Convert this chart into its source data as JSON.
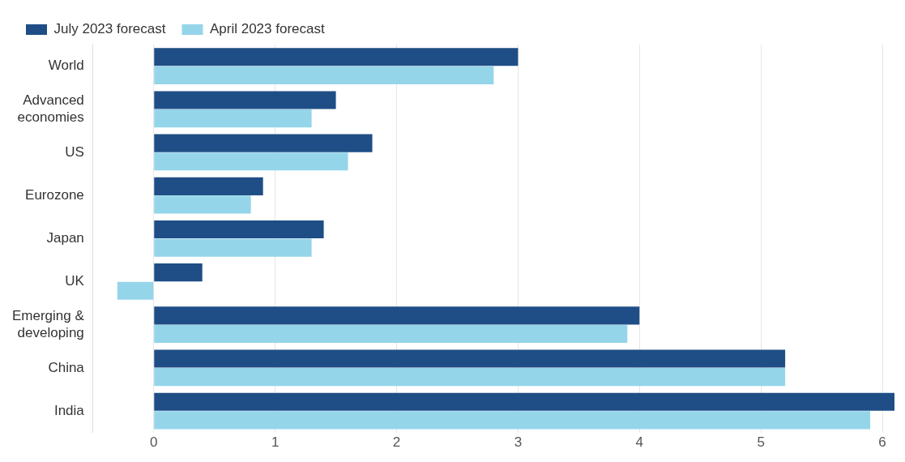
{
  "chart_data": {
    "type": "bar",
    "orientation": "horizontal",
    "categories": [
      "World",
      "Advanced economies",
      "US",
      "Eurozone",
      "Japan",
      "UK",
      "Emerging & developing",
      "China",
      "India"
    ],
    "series": [
      {
        "name": "July 2023 forecast",
        "color": "#1f4e86",
        "values": [
          3.0,
          1.5,
          1.8,
          0.9,
          1.4,
          0.4,
          4.0,
          5.2,
          6.1
        ]
      },
      {
        "name": "April 2023 forecast",
        "color": "#95d5ea",
        "values": [
          2.8,
          1.3,
          1.6,
          0.8,
          1.3,
          -0.3,
          3.9,
          5.2,
          5.9
        ]
      }
    ],
    "xlim": [
      -0.5,
      6.1
    ],
    "xticks": [
      0,
      1,
      2,
      3,
      4,
      5,
      6
    ],
    "grid": "x",
    "legend": "top left"
  }
}
